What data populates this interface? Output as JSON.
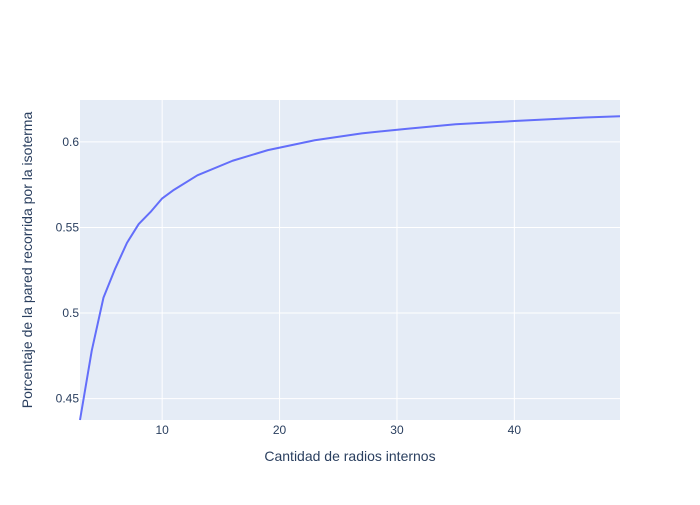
{
  "chart_data": {
    "type": "line",
    "title": "",
    "xlabel": "Cantidad de radios internos",
    "ylabel": "Porcentaje de la pared recorrida por la isoterma",
    "xlim": [
      3,
      49
    ],
    "ylim": [
      0.4375,
      0.6245
    ],
    "xticks": [
      10,
      20,
      30,
      40
    ],
    "yticks": [
      0.45,
      0.5,
      0.55,
      0.6
    ],
    "grid": true,
    "legend": "none",
    "colors": {
      "line": "#636efa",
      "plot_bg": "#e5ecf6",
      "grid": "#ffffff",
      "text": "#2a3f5f"
    },
    "series": [
      {
        "x": [
          3,
          4,
          5,
          6,
          7,
          8,
          9,
          10,
          11,
          13,
          16,
          19,
          23,
          27,
          31,
          35,
          40,
          46,
          49
        ],
        "y": [
          0.4375,
          0.478,
          0.509,
          0.526,
          0.541,
          0.552,
          0.559,
          0.567,
          0.572,
          0.5805,
          0.589,
          0.5952,
          0.601,
          0.605,
          0.6078,
          0.6103,
          0.6122,
          0.6143,
          0.615
        ]
      }
    ]
  }
}
